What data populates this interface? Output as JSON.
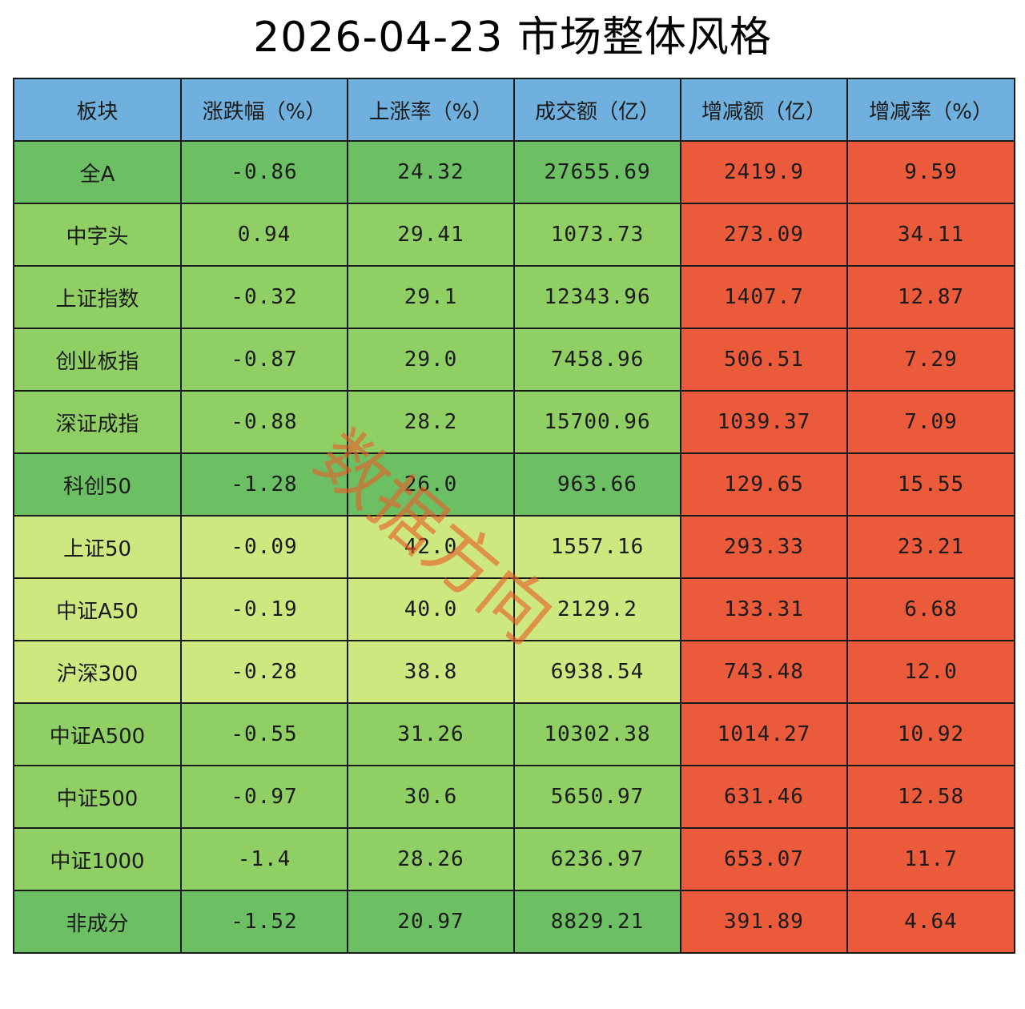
{
  "title": "2026-04-23  市场整体风格",
  "watermark": "数据方向",
  "colors": {
    "header": "#6fb0de",
    "dark_green": "#6cc063",
    "mid_green": "#8fcf64",
    "light_green": "#cde87f",
    "red": "#ea5a3b"
  },
  "chart_data": {
    "type": "table",
    "title": "2026-04-23  市场整体风格",
    "columns": [
      "板块",
      "涨跌幅（%）",
      "上涨率（%）",
      "成交额（亿）",
      "增减额（亿）",
      "增减率（%）"
    ],
    "rows": [
      {
        "name": "全A",
        "values": [
          "-0.86",
          "24.32",
          "27655.69",
          "2419.9",
          "9.59"
        ],
        "tone": "dark_green"
      },
      {
        "name": "中字头",
        "values": [
          "0.94",
          "29.41",
          "1073.73",
          "273.09",
          "34.11"
        ],
        "tone": "mid_green"
      },
      {
        "name": "上证指数",
        "values": [
          "-0.32",
          "29.1",
          "12343.96",
          "1407.7",
          "12.87"
        ],
        "tone": "mid_green"
      },
      {
        "name": "创业板指",
        "values": [
          "-0.87",
          "29.0",
          "7458.96",
          "506.51",
          "7.29"
        ],
        "tone": "mid_green"
      },
      {
        "name": "深证成指",
        "values": [
          "-0.88",
          "28.2",
          "15700.96",
          "1039.37",
          "7.09"
        ],
        "tone": "mid_green"
      },
      {
        "name": "科创50",
        "values": [
          "-1.28",
          "26.0",
          "963.66",
          "129.65",
          "15.55"
        ],
        "tone": "dark_green"
      },
      {
        "name": "上证50",
        "values": [
          "-0.09",
          "42.0",
          "1557.16",
          "293.33",
          "23.21"
        ],
        "tone": "light_green"
      },
      {
        "name": "中证A50",
        "values": [
          "-0.19",
          "40.0",
          "2129.2",
          "133.31",
          "6.68"
        ],
        "tone": "light_green"
      },
      {
        "name": "沪深300",
        "values": [
          "-0.28",
          "38.8",
          "6938.54",
          "743.48",
          "12.0"
        ],
        "tone": "light_green"
      },
      {
        "name": "中证A500",
        "values": [
          "-0.55",
          "31.26",
          "10302.38",
          "1014.27",
          "10.92"
        ],
        "tone": "mid_green"
      },
      {
        "name": "中证500",
        "values": [
          "-0.97",
          "30.6",
          "5650.97",
          "631.46",
          "12.58"
        ],
        "tone": "mid_green"
      },
      {
        "name": "中证1000",
        "values": [
          "-1.4",
          "28.26",
          "6236.97",
          "653.07",
          "11.7"
        ],
        "tone": "mid_green"
      },
      {
        "name": "非成分",
        "values": [
          "-1.52",
          "20.97",
          "8829.21",
          "391.89",
          "4.64"
        ],
        "tone": "dark_green"
      }
    ]
  }
}
